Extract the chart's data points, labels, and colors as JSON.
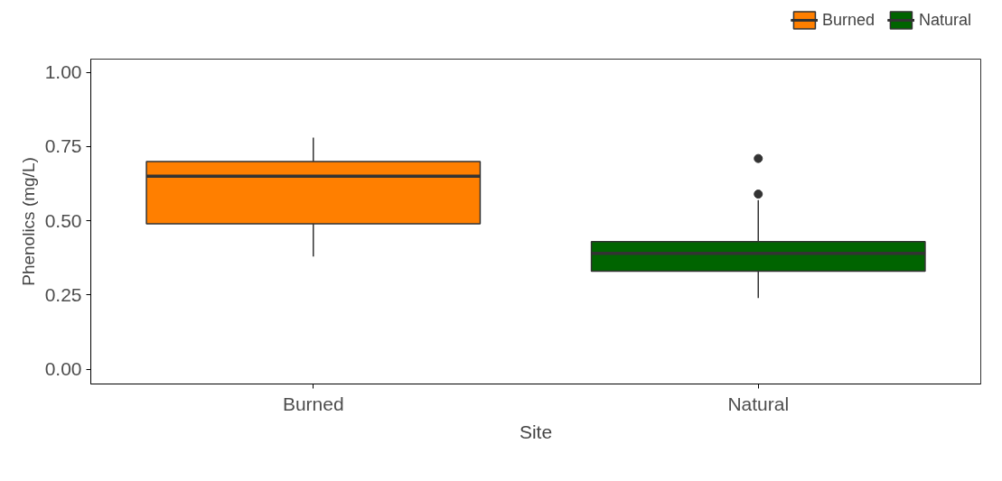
{
  "chart_data": {
    "type": "box",
    "xlabel": "Site",
    "ylabel": "Phenolics (mg/L)",
    "categories": [
      "Burned",
      "Natural"
    ],
    "series": [
      {
        "name": "Burned",
        "color": "#ff7f00",
        "boxes": [
          {
            "low": 0.38,
            "q1": 0.49,
            "median": 0.65,
            "q3": 0.7,
            "high": 0.78
          },
          null
        ]
      },
      {
        "name": "Natural",
        "color": "#006400",
        "boxes": [
          null,
          {
            "low": 0.24,
            "q1": 0.33,
            "median": 0.39,
            "q3": 0.43,
            "high": 0.57,
            "outliers": [
              0.71,
              0.59
            ]
          }
        ]
      }
    ],
    "ylim": [
      -0.05,
      1.045
    ],
    "yticks": [
      {
        "value": 0,
        "label": "0.00"
      },
      {
        "value": 0.25,
        "label": "0.25"
      },
      {
        "value": 0.5,
        "label": "0.50"
      },
      {
        "value": 0.75,
        "label": "0.75"
      },
      {
        "value": 1,
        "label": "1.00"
      }
    ],
    "grid": false,
    "legend": "top right"
  }
}
